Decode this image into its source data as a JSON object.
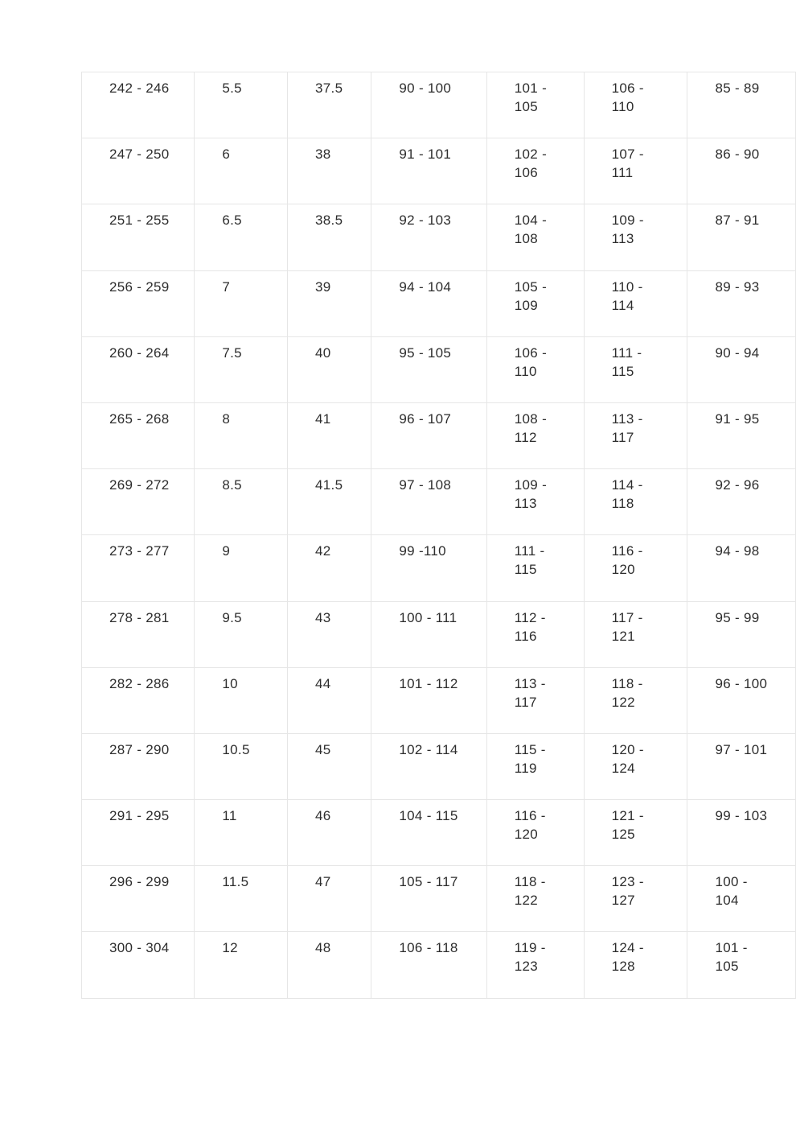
{
  "colors": {
    "background": "#ffffff",
    "border": "#e6e6e6",
    "text": "#2d2d2d"
  },
  "table": {
    "description": "score-conversion-table-fragment",
    "rows": [
      [
        "242 - 246",
        "5.5",
        "37.5",
        "90 - 100",
        "101 -\n105",
        "106 -\n110",
        "85 - 89"
      ],
      [
        "247 - 250",
        "6",
        "38",
        "91 - 101",
        "102 -\n106",
        "107 -\n111",
        "86 - 90"
      ],
      [
        "251 - 255",
        "6.5",
        "38.5",
        "92 - 103",
        "104 -\n108",
        "109 -\n113",
        "87 - 91"
      ],
      [
        "256 - 259",
        "7",
        "39",
        "94 - 104",
        "105 -\n109",
        "110 -\n114",
        "89 - 93"
      ],
      [
        "260 - 264",
        "7.5",
        "40",
        "95 - 105",
        "106 -\n110",
        "111 -\n115",
        "90 - 94"
      ],
      [
        "265 - 268",
        "8",
        "41",
        "96 - 107",
        "108 -\n112",
        "113 -\n117",
        "91 - 95"
      ],
      [
        "269 - 272",
        "8.5",
        "41.5",
        "97 - 108",
        "109 -\n113",
        "114 -\n118",
        "92 - 96"
      ],
      [
        "273 - 277",
        "9",
        "42",
        "99 -110",
        "111 -\n115",
        "116 -\n120",
        "94 - 98"
      ],
      [
        "278 - 281",
        "9.5",
        "43",
        "100 - 111",
        "112 -\n116",
        "117 -\n121",
        "95 - 99"
      ],
      [
        "282 - 286",
        "10",
        "44",
        "101 - 112",
        "113 -\n117",
        "118 -\n122",
        "96 - 100"
      ],
      [
        "287 - 290",
        "10.5",
        "45",
        "102 - 114",
        "115 -\n119",
        "120 -\n124",
        "97 - 101"
      ],
      [
        "291 - 295",
        "11",
        "46",
        "104 - 115",
        "116 -\n120",
        "121 -\n125",
        "99 - 103"
      ],
      [
        "296 - 299",
        "11.5",
        "47",
        "105 - 117",
        "118 -\n122",
        "123 -\n127",
        "100 -\n104"
      ],
      [
        "300 - 304",
        "12",
        "48",
        "106 - 118",
        "119 -\n123",
        "124 -\n128",
        "101 -\n105"
      ]
    ]
  }
}
